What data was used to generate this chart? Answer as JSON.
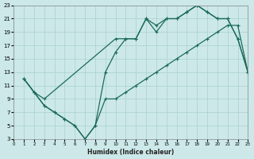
{
  "xlabel": "Humidex (Indice chaleur)",
  "bg_color": "#cce8e8",
  "grid_color": "#aad0d0",
  "line_color": "#1a6b5a",
  "xlim": [
    0,
    23
  ],
  "ylim": [
    3,
    23
  ],
  "xticks": [
    0,
    1,
    2,
    3,
    4,
    5,
    6,
    7,
    8,
    9,
    10,
    11,
    12,
    13,
    14,
    15,
    16,
    17,
    18,
    19,
    20,
    21,
    22,
    23
  ],
  "yticks": [
    3,
    5,
    7,
    9,
    11,
    13,
    15,
    17,
    19,
    21,
    23
  ],
  "curve1_x": [
    1,
    2,
    3,
    10,
    11,
    12,
    13,
    14,
    15,
    16,
    17,
    18,
    19,
    20,
    21,
    22,
    23
  ],
  "curve1_y": [
    12,
    10,
    9,
    18,
    18,
    18,
    21,
    20,
    21,
    21,
    22,
    23,
    22,
    21,
    21,
    18,
    13
  ],
  "curve2_x": [
    1,
    2,
    3,
    4,
    5,
    6,
    7,
    8,
    9,
    10,
    11,
    12,
    13,
    14,
    15,
    16,
    17,
    18,
    19,
    20,
    21,
    22,
    23
  ],
  "curve2_y": [
    12,
    10,
    8,
    7,
    6,
    5,
    3,
    5,
    13,
    16,
    18,
    18,
    21,
    19,
    21,
    21,
    22,
    23,
    22,
    21,
    21,
    18,
    13
  ],
  "curve3_x": [
    1,
    2,
    3,
    4,
    5,
    6,
    7,
    8,
    9,
    10,
    11,
    12,
    13,
    14,
    15,
    16,
    17,
    18,
    19,
    20,
    21,
    22,
    23
  ],
  "curve3_y": [
    12,
    10,
    8,
    7,
    6,
    5,
    3,
    5,
    9,
    9,
    10,
    11,
    12,
    13,
    14,
    15,
    16,
    17,
    18,
    19,
    20,
    20,
    13
  ]
}
